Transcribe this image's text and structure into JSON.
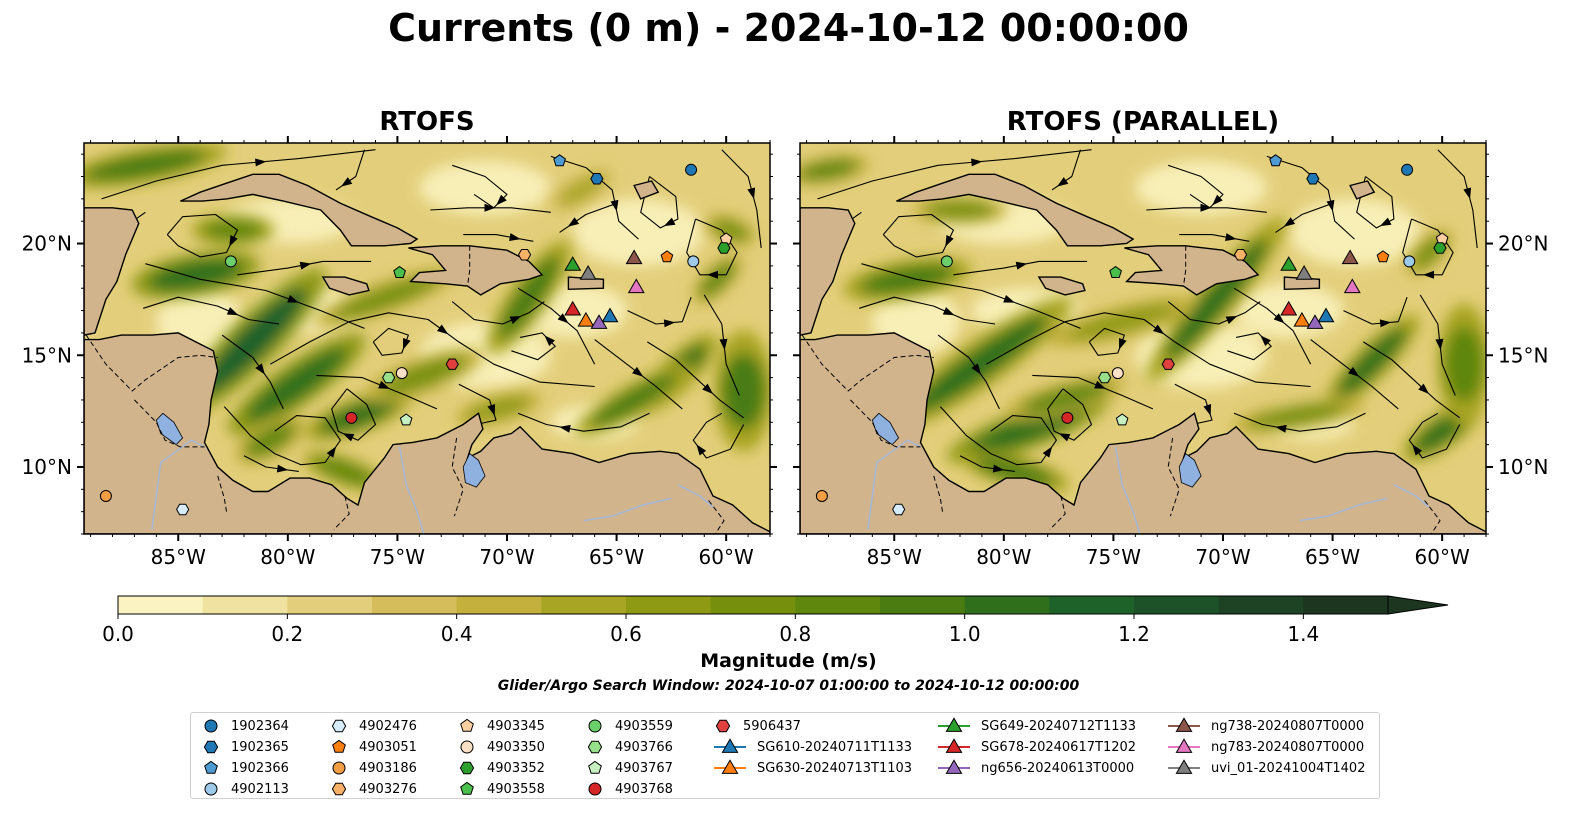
{
  "title": "Currents (0 m) - 2024-10-12 00:00:00",
  "panels": [
    {
      "title": "RTOFS"
    },
    {
      "title": "RTOFS (PARALLEL)"
    }
  ],
  "map_axes": {
    "lon_range": [
      -89.3,
      -58.0
    ],
    "lat_range": [
      7.0,
      24.5
    ],
    "lon_ticks": [
      "85°W",
      "80°W",
      "75°W",
      "70°W",
      "65°W",
      "60°W"
    ],
    "lat_ticks": [
      "10°N",
      "15°N",
      "20°N"
    ]
  },
  "colors": {
    "land": "#d2b48c",
    "lake": "#8fb1e0",
    "river": "#a3b8d8",
    "streamline": "#000000"
  },
  "chart_data": {
    "type": "heatmap",
    "title": "Currents (0 m) - 2024-10-12 00:00:00",
    "colorbar": {
      "label": "Magnitude (m/s)",
      "range": [
        0.0,
        1.5
      ],
      "extend": "max",
      "tick_labels": [
        "0.0",
        "0.2",
        "0.4",
        "0.6",
        "0.8",
        "1.0",
        "1.2",
        "1.4"
      ],
      "levels": [
        0.0,
        0.1,
        0.2,
        0.3,
        0.4,
        0.5,
        0.6,
        0.7,
        0.8,
        0.9,
        1.0,
        1.1,
        1.2,
        1.3,
        1.4,
        1.5
      ],
      "level_colors": [
        "#fbf4c2",
        "#f0e2a0",
        "#e3cf7b",
        "#d4bd5a",
        "#c3b03d",
        "#a8a424",
        "#8f9a14",
        "#76900e",
        "#5f860d",
        "#4a7c12",
        "#2f6f1b",
        "#1f6229",
        "#1d5228",
        "#1e4324",
        "#1d3620"
      ]
    },
    "markers": [
      {
        "id": "1902364",
        "shape": "circle",
        "color": "#1f77b4",
        "lon": -61.6,
        "lat": 23.3
      },
      {
        "id": "1902365",
        "shape": "hexagon",
        "color": "#1f77b4",
        "lon": -65.9,
        "lat": 22.9
      },
      {
        "id": "1902366",
        "shape": "pentagon",
        "color": "#4e9bd4",
        "lon": -67.6,
        "lat": 23.7
      },
      {
        "id": "4902113",
        "shape": "circle",
        "color": "#9ecae9",
        "lon": -61.5,
        "lat": 19.2
      },
      {
        "id": "4902476",
        "shape": "hexagon",
        "color": "#d6ecfb",
        "lon": -84.8,
        "lat": 8.1
      },
      {
        "id": "4903051",
        "shape": "pentagon",
        "color": "#ff7f0e",
        "lon": -62.7,
        "lat": 19.4
      },
      {
        "id": "4903186",
        "shape": "circle",
        "color": "#f39d45",
        "lon": -88.3,
        "lat": 8.7
      },
      {
        "id": "4903276",
        "shape": "hexagon",
        "color": "#f7b267",
        "lon": -69.2,
        "lat": 19.5
      },
      {
        "id": "4903345",
        "shape": "pentagon",
        "color": "#fdd0a2",
        "lon": -60.0,
        "lat": 20.2
      },
      {
        "id": "4903350",
        "shape": "circle",
        "color": "#fde0c5",
        "lon": -74.8,
        "lat": 14.2
      },
      {
        "id": "4903352",
        "shape": "hexagon",
        "color": "#2ca02c",
        "lon": -60.1,
        "lat": 19.8
      },
      {
        "id": "4903558",
        "shape": "pentagon",
        "color": "#4bbf4b",
        "lon": -74.9,
        "lat": 18.7
      },
      {
        "id": "4903559",
        "shape": "circle",
        "color": "#6bcf6b",
        "lon": -82.6,
        "lat": 19.2
      },
      {
        "id": "4903766",
        "shape": "hexagon",
        "color": "#98df8a",
        "lon": -75.4,
        "lat": 14.0
      },
      {
        "id": "4903767",
        "shape": "pentagon",
        "color": "#c7f0c0",
        "lon": -74.6,
        "lat": 12.1
      },
      {
        "id": "4903768",
        "shape": "circle",
        "color": "#d62728",
        "lon": -77.1,
        "lat": 12.2
      },
      {
        "id": "5906437",
        "shape": "hexagon",
        "color": "#e0413f",
        "lon": -72.5,
        "lat": 14.6
      },
      {
        "id": "SG610-20240711T1133",
        "shape": "triangle",
        "color": "#1f77b4",
        "lon": -65.3,
        "lat": 16.7
      },
      {
        "id": "SG630-20240713T1103",
        "shape": "triangle",
        "color": "#ff7f0e",
        "lon": -66.4,
        "lat": 16.5
      },
      {
        "id": "SG649-20240712T1133",
        "shape": "triangle",
        "color": "#2ca02c",
        "lon": -67.0,
        "lat": 19.0
      },
      {
        "id": "SG678-20240617T1202",
        "shape": "triangle",
        "color": "#d62728",
        "lon": -67.0,
        "lat": 17.0
      },
      {
        "id": "ng656-20240613T0000",
        "shape": "triangle",
        "color": "#9467bd",
        "lon": -65.8,
        "lat": 16.4
      },
      {
        "id": "ng738-20240807T0000",
        "shape": "triangle",
        "color": "#8c564b",
        "lon": -64.2,
        "lat": 19.3
      },
      {
        "id": "ng783-20240807T0000",
        "shape": "triangle",
        "color": "#e377c2",
        "lon": -64.1,
        "lat": 18.0
      },
      {
        "id": "uvi_01-20241004T1402",
        "shape": "triangle",
        "color": "#7f7f7f",
        "lon": -66.3,
        "lat": 18.6
      }
    ]
  },
  "search_window": "Glider/Argo Search Window: 2024-10-07 01:00:00 to 2024-10-12 00:00:00"
}
